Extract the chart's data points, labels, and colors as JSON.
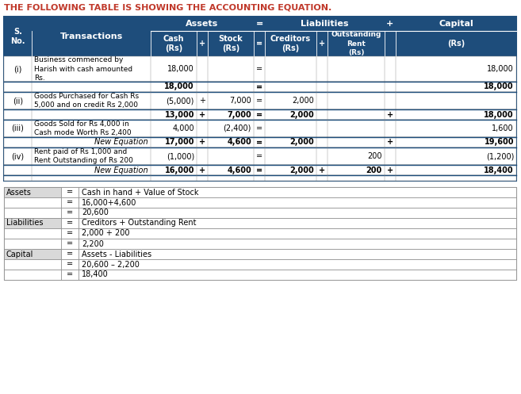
{
  "title": "THE FOLLOWING TABLE IS SHOWING THE ACCOUNTING EQUATION.",
  "title_color": "#C0392B",
  "header_bg": "#1E4D7B",
  "header_text_color": "#FFFFFF",
  "border_color": "#888888",
  "dark_border_color": "#1E4D7B",
  "summary_label_bg": "#D9D9D9",
  "rows": [
    {
      "sno": "(i)",
      "transaction": "Business commenced by\nHarish with cash amounted\nRs.",
      "cash": "18,000",
      "plus1": "",
      "stock": "",
      "eq1": "=",
      "creditors": "",
      "plus2": "",
      "outrent": "",
      "plus3": "",
      "capital": "18,000",
      "is_equation": false
    },
    {
      "sno": "",
      "transaction": "",
      "cash": "18,000",
      "plus1": "",
      "stock": "",
      "eq1": "=",
      "creditors": "",
      "plus2": "",
      "outrent": "",
      "plus3": "",
      "capital": "18,000",
      "is_equation": true
    },
    {
      "sno": "(ii)",
      "transaction": "Goods Purchased for Cash Rs\n5,000 and on credit Rs 2,000",
      "cash": "(5,000)",
      "plus1": "+",
      "stock": "7,000",
      "eq1": "=",
      "creditors": "2,000",
      "plus2": "",
      "outrent": "",
      "plus3": "",
      "capital": "",
      "is_equation": false
    },
    {
      "sno": "",
      "transaction": "",
      "cash": "13,000",
      "plus1": "+",
      "stock": "7,000",
      "eq1": "=",
      "creditors": "2,000",
      "plus2": "",
      "outrent": "",
      "plus3": "+",
      "capital": "18,000",
      "is_equation": true
    },
    {
      "sno": "(iii)",
      "transaction": "Goods Sold for Rs 4,000 in\nCash mode Worth Rs 2,400",
      "cash": "4,000",
      "plus1": "",
      "stock": "(2,400)",
      "eq1": "=",
      "creditors": "",
      "plus2": "",
      "outrent": "",
      "plus3": "",
      "capital": "1,600",
      "is_equation": false
    },
    {
      "sno": "",
      "transaction": "New Equation",
      "cash": "17,000",
      "plus1": "+",
      "stock": "4,600",
      "eq1": "=",
      "creditors": "2,000",
      "plus2": "",
      "outrent": "",
      "plus3": "+",
      "capital": "19,600",
      "is_equation": true
    },
    {
      "sno": "(iv)",
      "transaction": "Rent paid of Rs 1,000 and\nRent Outstanding of Rs 200",
      "cash": "(1,000)",
      "plus1": "",
      "stock": "",
      "eq1": "=",
      "creditors": "",
      "plus2": "",
      "outrent": "200",
      "plus3": "",
      "capital": "(1,200)",
      "is_equation": false
    },
    {
      "sno": "",
      "transaction": "New Equation",
      "cash": "16,000",
      "plus1": "+",
      "stock": "4,600",
      "eq1": "=",
      "creditors": "2,000",
      "plus2": "+",
      "outrent": "200",
      "plus3": "+",
      "capital": "18,400",
      "is_equation": true
    }
  ],
  "summary_rows": [
    [
      "Assets",
      "=",
      "Cash in hand + Value of Stock"
    ],
    [
      "",
      "=",
      "16,000+4,600"
    ],
    [
      "",
      "=",
      "20,600"
    ],
    [
      "Liabilities",
      "=",
      "Creditors + Outstanding Rent"
    ],
    [
      "",
      "=",
      "2,000 + 200"
    ],
    [
      "",
      "=",
      "2,200"
    ],
    [
      "Capital",
      "=",
      "Assets - Liabilities"
    ],
    [
      "",
      "=",
      "20,600 – 2,200"
    ],
    [
      "",
      "=",
      "18,400"
    ]
  ]
}
